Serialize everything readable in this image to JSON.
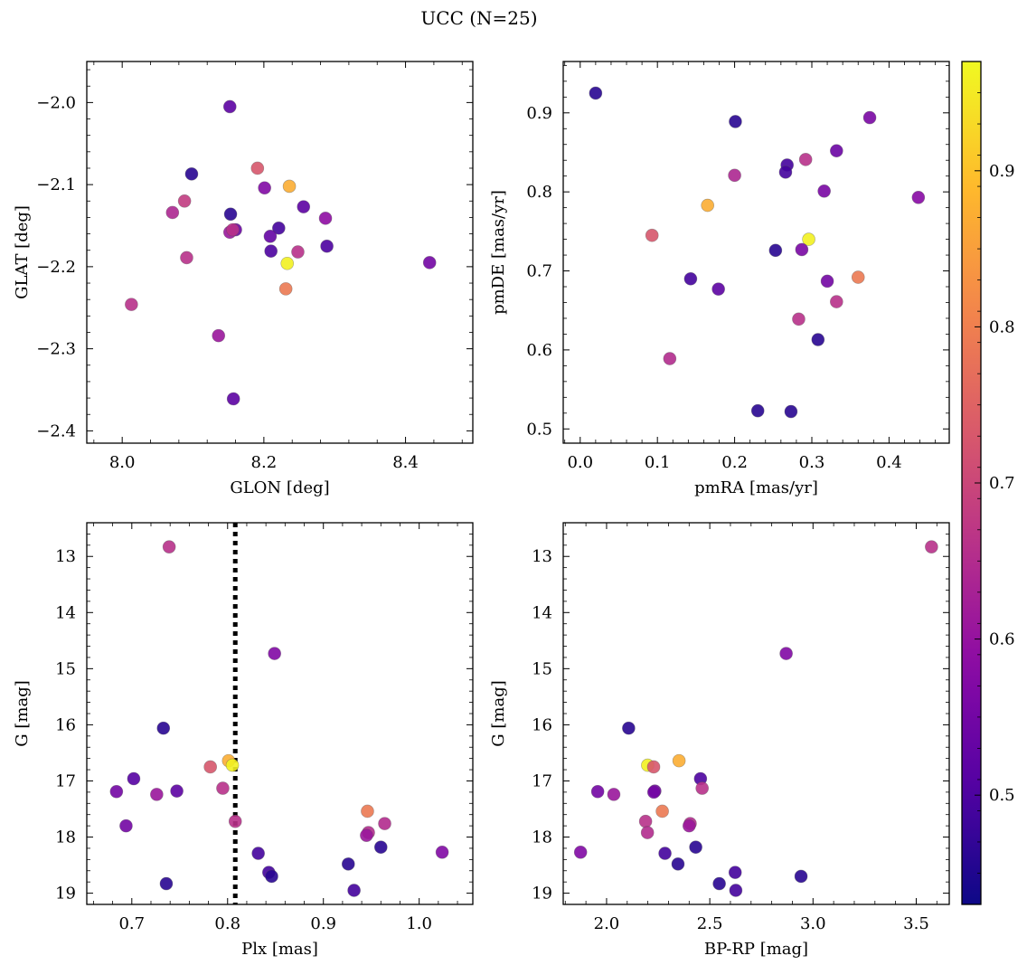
{
  "figure_title": "UCC (N=25)",
  "colorbar": {
    "min": 0.43,
    "max": 0.97,
    "ticks": [
      "0.5",
      "0.6",
      "0.7",
      "0.8",
      "0.9"
    ],
    "colormap": "plasma"
  },
  "chart_data": [
    {
      "type": "scatter",
      "title": "",
      "xlabel": "GLON [deg]",
      "ylabel": "GLAT [deg]",
      "xlim": [
        7.95,
        8.495
      ],
      "ylim": [
        -2.415,
        -1.95
      ],
      "xticks": [
        8.0,
        8.2,
        8.4
      ],
      "xticklabels": [
        "8.0",
        "8.2",
        "8.4"
      ],
      "yticks": [
        -2.0,
        -2.1,
        -2.2,
        -2.3,
        -2.4
      ],
      "yticklabels": [
        "−2.0",
        "−2.1",
        "−2.2",
        "−2.3",
        "−2.4"
      ],
      "x": [
        8.152,
        8.098,
        8.191,
        8.236,
        8.201,
        8.071,
        8.088,
        8.256,
        8.153,
        8.287,
        8.16,
        8.221,
        8.152,
        8.209,
        8.21,
        8.289,
        8.248,
        8.233,
        8.091,
        8.434,
        8.231,
        8.013,
        8.136,
        8.157,
        8.156
      ],
      "y": [
        -2.005,
        -2.087,
        -2.08,
        -2.102,
        -2.104,
        -2.134,
        -2.12,
        -2.127,
        -2.136,
        -2.141,
        -2.155,
        -2.153,
        -2.158,
        -2.163,
        -2.181,
        -2.175,
        -2.182,
        -2.196,
        -2.189,
        -2.195,
        -2.227,
        -2.246,
        -2.284,
        -2.361,
        -2.155
      ],
      "c": [
        0.52,
        0.46,
        0.73,
        0.87,
        0.57,
        0.64,
        0.68,
        0.52,
        0.46,
        0.59,
        0.54,
        0.49,
        0.61,
        0.53,
        0.5,
        0.5,
        0.66,
        0.96,
        0.66,
        0.55,
        0.79,
        0.66,
        0.61,
        0.52,
        0.66
      ]
    },
    {
      "type": "scatter",
      "title": "",
      "xlabel": "pmRA [mas/yr]",
      "ylabel": "pmDE [mas/yr]",
      "xlim": [
        -0.022,
        0.478
      ],
      "ylim": [
        0.482,
        0.965
      ],
      "xticks": [
        0.0,
        0.1,
        0.2,
        0.3,
        0.4
      ],
      "xticklabels": [
        "0.0",
        "0.1",
        "0.2",
        "0.3",
        "0.4"
      ],
      "yticks": [
        0.5,
        0.6,
        0.7,
        0.8,
        0.9
      ],
      "yticklabels": [
        "0.5",
        "0.6",
        "0.7",
        "0.8",
        "0.9"
      ],
      "x": [
        0.02,
        0.201,
        0.375,
        0.332,
        0.292,
        0.268,
        0.266,
        0.2,
        0.316,
        0.165,
        0.438,
        0.093,
        0.296,
        0.253,
        0.287,
        0.36,
        0.143,
        0.32,
        0.179,
        0.332,
        0.283,
        0.308,
        0.116,
        0.23,
        0.273
      ],
      "y": [
        0.925,
        0.889,
        0.894,
        0.852,
        0.841,
        0.834,
        0.825,
        0.821,
        0.801,
        0.783,
        0.793,
        0.745,
        0.74,
        0.726,
        0.727,
        0.692,
        0.69,
        0.687,
        0.677,
        0.661,
        0.639,
        0.613,
        0.589,
        0.523,
        0.522
      ],
      "c": [
        0.46,
        0.46,
        0.56,
        0.54,
        0.66,
        0.49,
        0.49,
        0.64,
        0.56,
        0.87,
        0.58,
        0.73,
        0.96,
        0.46,
        0.56,
        0.79,
        0.49,
        0.55,
        0.52,
        0.66,
        0.66,
        0.46,
        0.65,
        0.46,
        0.46
      ]
    },
    {
      "type": "scatter",
      "title": "",
      "xlabel": "Plx [mas]",
      "ylabel": "G [mag]",
      "xlim": [
        0.653,
        1.056
      ],
      "ylim": [
        19.2,
        12.4
      ],
      "xticks": [
        0.7,
        0.8,
        0.9,
        1.0
      ],
      "xticklabels": [
        "0.7",
        "0.8",
        "0.9",
        "1.0"
      ],
      "yticks": [
        13,
        14,
        15,
        16,
        17,
        18,
        19
      ],
      "yticklabels": [
        "13",
        "14",
        "15",
        "16",
        "17",
        "18",
        "19"
      ],
      "vline": 0.808,
      "x": [
        0.739,
        0.849,
        0.733,
        0.702,
        0.801,
        0.782,
        0.805,
        0.684,
        0.747,
        0.726,
        0.795,
        0.694,
        0.808,
        0.946,
        0.964,
        0.947,
        0.945,
        0.96,
        0.832,
        1.024,
        0.926,
        0.843,
        0.846,
        0.736,
        0.932
      ],
      "y": [
        12.83,
        14.73,
        16.06,
        16.96,
        16.64,
        16.75,
        16.72,
        17.19,
        17.18,
        17.24,
        17.13,
        17.8,
        17.72,
        17.54,
        17.76,
        17.92,
        17.97,
        18.18,
        18.29,
        18.27,
        18.48,
        18.63,
        18.7,
        18.83,
        18.95
      ],
      "c": [
        0.66,
        0.57,
        0.46,
        0.51,
        0.87,
        0.73,
        0.96,
        0.55,
        0.52,
        0.61,
        0.66,
        0.55,
        0.66,
        0.79,
        0.65,
        0.65,
        0.61,
        0.46,
        0.49,
        0.57,
        0.46,
        0.49,
        0.46,
        0.46,
        0.49
      ]
    },
    {
      "type": "scatter",
      "title": "",
      "xlabel": "BP-RP [mag]",
      "ylabel": "G [mag]",
      "xlim": [
        1.79,
        3.66
      ],
      "ylim": [
        19.2,
        12.4
      ],
      "xticks": [
        2.0,
        2.5,
        3.0,
        3.5
      ],
      "xticklabels": [
        "2.0",
        "2.5",
        "3.0",
        "3.5"
      ],
      "yticks": [
        13,
        14,
        15,
        16,
        17,
        18,
        19
      ],
      "yticklabels": [
        "13",
        "14",
        "15",
        "16",
        "17",
        "18",
        "19"
      ],
      "x": [
        3.574,
        2.87,
        2.107,
        2.351,
        2.455,
        2.199,
        2.228,
        1.957,
        2.035,
        2.234,
        2.463,
        2.27,
        2.189,
        2.405,
        2.198,
        2.4,
        1.874,
        2.432,
        2.283,
        2.346,
        2.623,
        2.546,
        2.942,
        2.626,
        2.229
      ],
      "y": [
        12.83,
        14.73,
        16.06,
        16.64,
        16.96,
        16.72,
        16.75,
        17.19,
        17.24,
        17.18,
        17.13,
        17.54,
        17.72,
        17.76,
        17.92,
        17.8,
        18.27,
        18.18,
        18.29,
        18.48,
        18.63,
        18.83,
        18.7,
        18.95,
        17.2
      ],
      "c": [
        0.66,
        0.57,
        0.46,
        0.87,
        0.5,
        0.96,
        0.73,
        0.55,
        0.61,
        0.55,
        0.66,
        0.79,
        0.66,
        0.65,
        0.65,
        0.61,
        0.57,
        0.46,
        0.49,
        0.46,
        0.49,
        0.46,
        0.46,
        0.49,
        0.55
      ]
    }
  ]
}
